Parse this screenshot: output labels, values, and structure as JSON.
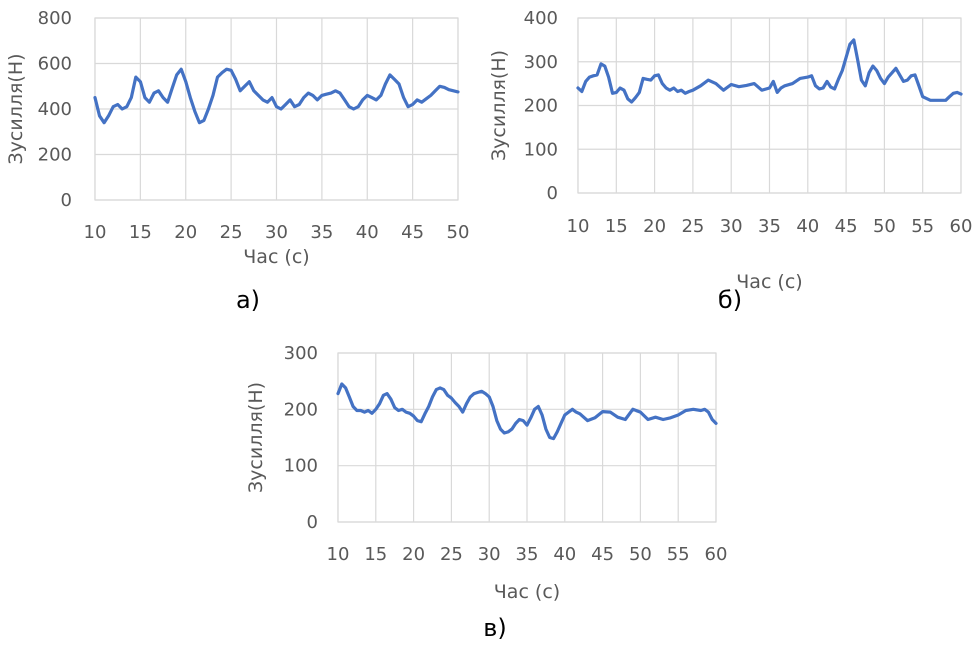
{
  "series_color": "#4472c4",
  "chart_data": [
    {
      "type": "line",
      "panel_label": "а)",
      "xlabel": "Час (с)",
      "ylabel": "Зусилля(Н)",
      "xlim": [
        10,
        50
      ],
      "ylim": [
        0,
        800
      ],
      "x_ticks": [
        10,
        15,
        20,
        25,
        30,
        35,
        40,
        45,
        50
      ],
      "y_ticks": [
        0,
        200,
        400,
        600,
        800
      ],
      "grid": true,
      "series": [
        {
          "x": [
            10,
            10.5,
            11,
            11.5,
            12,
            12.5,
            13,
            13.5,
            14,
            14.5,
            15,
            15.5,
            16,
            16.5,
            17,
            17.5,
            18,
            18.5,
            19,
            19.5,
            20,
            20.5,
            21,
            21.5,
            22,
            22.5,
            23,
            23.5,
            24,
            24.5,
            25,
            25.5,
            26,
            26.5,
            27,
            27.5,
            28,
            28.5,
            29,
            29.5,
            30,
            30.5,
            31,
            31.5,
            32,
            32.5,
            33,
            33.5,
            34,
            34.5,
            35,
            35.5,
            36,
            36.5,
            37,
            37.5,
            38,
            38.5,
            39,
            39.5,
            40,
            40.5,
            41,
            41.5,
            42,
            42.5,
            43,
            43.5,
            44,
            44.5,
            45,
            45.5,
            46,
            46.5,
            47,
            47.5,
            48,
            48.5,
            49,
            49.5,
            50
          ],
          "y": [
            450,
            370,
            340,
            370,
            410,
            420,
            400,
            410,
            450,
            540,
            520,
            450,
            430,
            470,
            480,
            450,
            430,
            490,
            550,
            575,
            520,
            450,
            390,
            340,
            350,
            400,
            460,
            540,
            560,
            575,
            570,
            530,
            480,
            500,
            520,
            480,
            460,
            440,
            430,
            450,
            410,
            400,
            420,
            440,
            410,
            420,
            450,
            470,
            460,
            440,
            460,
            465,
            470,
            480,
            470,
            440,
            410,
            400,
            410,
            440,
            460,
            450,
            440,
            460,
            510,
            550,
            530,
            510,
            450,
            410,
            420,
            440,
            430,
            445,
            460,
            480,
            500,
            495,
            485,
            480,
            475
          ]
        }
      ]
    },
    {
      "type": "line",
      "panel_label": "б)",
      "xlabel": "Час (с)",
      "ylabel": "Зусилля(Н)",
      "xlim": [
        10,
        60
      ],
      "ylim": [
        0,
        400
      ],
      "x_ticks": [
        10,
        15,
        20,
        25,
        30,
        35,
        40,
        45,
        50,
        55,
        60
      ],
      "y_ticks": [
        0,
        100,
        200,
        300,
        400
      ],
      "grid": true,
      "series": [
        {
          "x": [
            10,
            10.5,
            11,
            11.5,
            12,
            12.5,
            13,
            13.5,
            14,
            14.5,
            15,
            15.5,
            16,
            16.5,
            17,
            17.5,
            18,
            18.5,
            19,
            19.5,
            20,
            20.5,
            21,
            21.5,
            22,
            22.5,
            23,
            23.5,
            24,
            24.5,
            25,
            26,
            27,
            28,
            29,
            30,
            31,
            32,
            33,
            34,
            35,
            35.5,
            36,
            36.5,
            37,
            38,
            39,
            40,
            40.5,
            41,
            41.5,
            42,
            42.5,
            43,
            43.5,
            44,
            44.5,
            45,
            45.5,
            46,
            46.5,
            47,
            47.5,
            48,
            48.5,
            49,
            49.5,
            50,
            50.5,
            51,
            51.5,
            52,
            52.5,
            53,
            53.5,
            54,
            54.5,
            55,
            56,
            57,
            58,
            58.5,
            59,
            59.5,
            60
          ],
          "y": [
            240,
            232,
            255,
            265,
            268,
            270,
            295,
            290,
            265,
            228,
            230,
            240,
            235,
            215,
            208,
            218,
            230,
            262,
            260,
            258,
            268,
            270,
            250,
            240,
            235,
            240,
            232,
            235,
            228,
            232,
            235,
            245,
            258,
            250,
            235,
            248,
            243,
            246,
            250,
            235,
            240,
            255,
            230,
            240,
            245,
            250,
            262,
            265,
            268,
            245,
            238,
            240,
            255,
            242,
            238,
            260,
            280,
            310,
            340,
            350,
            305,
            258,
            245,
            275,
            290,
            280,
            262,
            250,
            265,
            275,
            285,
            270,
            255,
            258,
            268,
            270,
            245,
            220,
            212,
            212,
            212,
            220,
            228,
            230,
            226
          ]
        }
      ]
    },
    {
      "type": "line",
      "panel_label": "в)",
      "xlabel": "Час (с)",
      "ylabel": "Зусилля(Н)",
      "xlim": [
        10,
        60
      ],
      "ylim": [
        0,
        300
      ],
      "x_ticks": [
        10,
        15,
        20,
        25,
        30,
        35,
        40,
        45,
        50,
        55,
        60
      ],
      "y_ticks": [
        0,
        100,
        200,
        300
      ],
      "grid": true,
      "series": [
        {
          "x": [
            10,
            10.5,
            11,
            11.5,
            12,
            12.5,
            13,
            13.5,
            14,
            14.5,
            15,
            15.5,
            16,
            16.5,
            17,
            17.5,
            18,
            18.5,
            19,
            19.5,
            20,
            20.5,
            21,
            21.5,
            22,
            22.5,
            23,
            23.5,
            24,
            24.5,
            25,
            25.5,
            26,
            26.5,
            27,
            27.5,
            28,
            28.5,
            29,
            29.5,
            30,
            30.5,
            31,
            31.5,
            32,
            32.5,
            33,
            33.5,
            34,
            34.5,
            35,
            35.5,
            36,
            36.5,
            37,
            37.5,
            38,
            38.5,
            39,
            39.5,
            40,
            40.5,
            41,
            41.5,
            42,
            43,
            44,
            45,
            46,
            47,
            48,
            49,
            50,
            51,
            52,
            53,
            54,
            55,
            56,
            57,
            58,
            58.5,
            59,
            59.5,
            60
          ],
          "y": [
            228,
            245,
            238,
            222,
            205,
            198,
            198,
            195,
            198,
            193,
            200,
            210,
            225,
            228,
            218,
            203,
            198,
            200,
            195,
            193,
            188,
            180,
            178,
            192,
            205,
            222,
            235,
            238,
            235,
            225,
            220,
            212,
            205,
            195,
            210,
            222,
            228,
            230,
            232,
            228,
            222,
            205,
            180,
            165,
            158,
            160,
            165,
            175,
            182,
            180,
            172,
            185,
            200,
            205,
            190,
            165,
            150,
            148,
            160,
            175,
            190,
            195,
            200,
            195,
            192,
            180,
            185,
            196,
            195,
            186,
            182,
            200,
            195,
            182,
            186,
            182,
            185,
            190,
            198,
            200,
            198,
            200,
            195,
            182,
            175
          ]
        }
      ]
    }
  ]
}
